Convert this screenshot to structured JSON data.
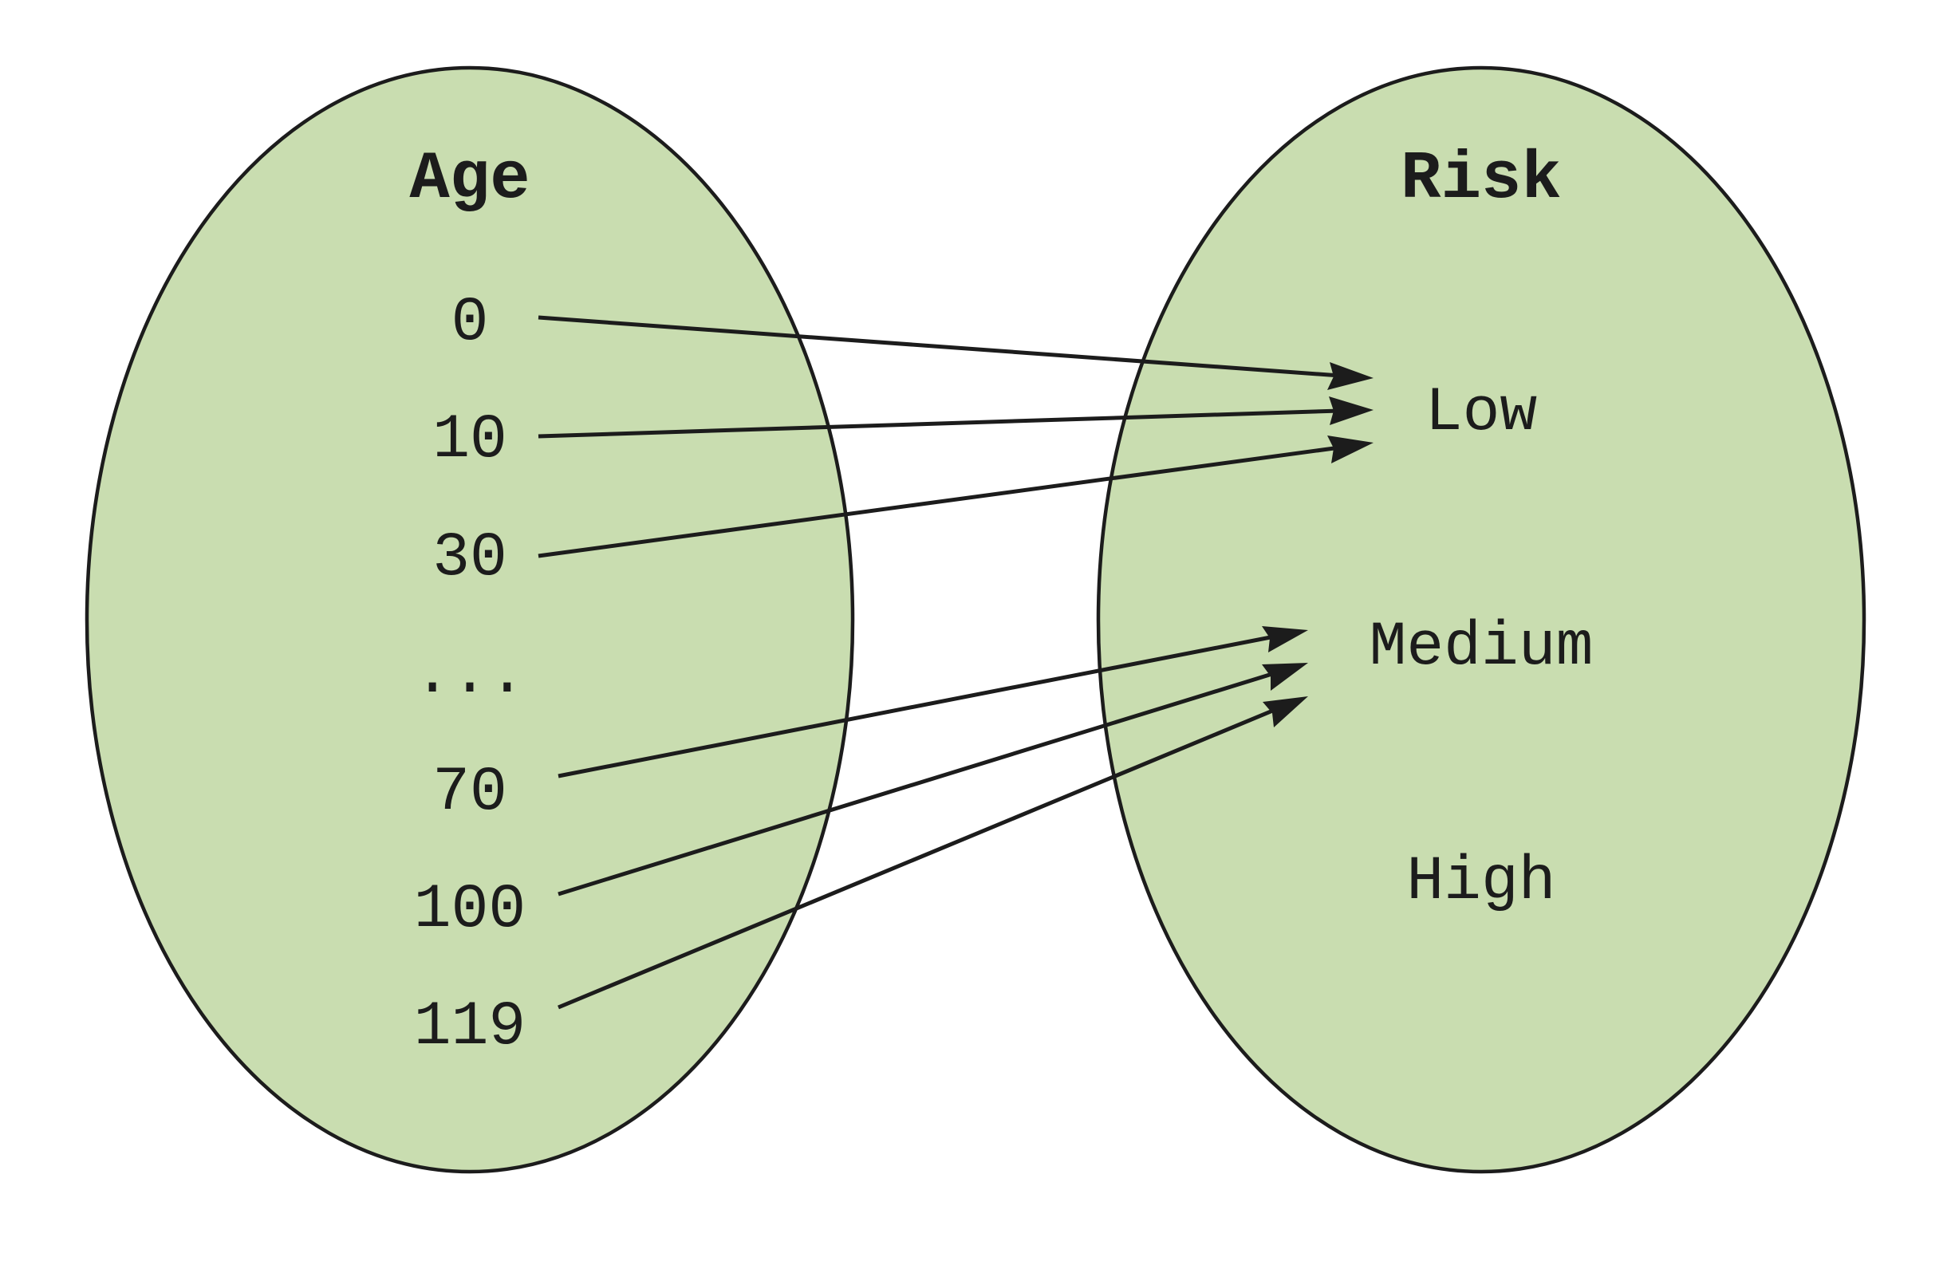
{
  "colors": {
    "set_fill": "#c9ddb0",
    "stroke": "#1c1c1c",
    "background": "#ffffff"
  },
  "domain_set": {
    "title": "Age",
    "elements": [
      "0",
      "10",
      "30",
      "...",
      "70",
      "100",
      "119"
    ]
  },
  "codomain_set": {
    "title": "Risk",
    "elements": [
      "Low",
      "Medium",
      "High"
    ]
  },
  "mapping": [
    {
      "from": "0",
      "to": "Low"
    },
    {
      "from": "10",
      "to": "Low"
    },
    {
      "from": "30",
      "to": "Low"
    },
    {
      "from": "70",
      "to": "Medium"
    },
    {
      "from": "100",
      "to": "Medium"
    },
    {
      "from": "119",
      "to": "Medium"
    }
  ]
}
